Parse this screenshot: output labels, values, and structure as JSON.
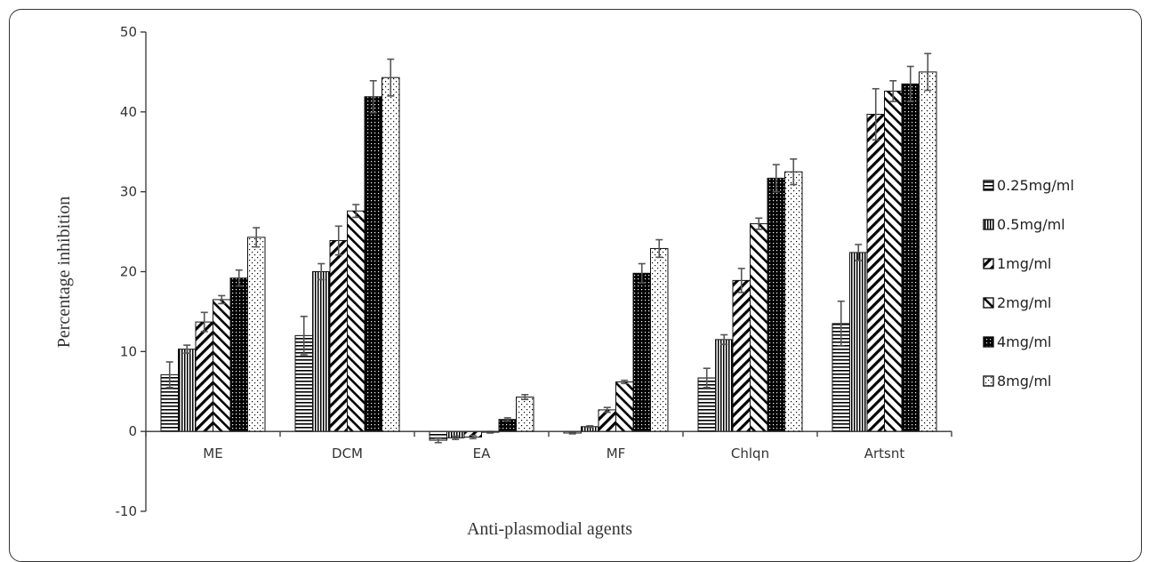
{
  "chart_data": {
    "type": "bar",
    "xlabel": "Anti-plasmodial agents",
    "ylabel": "Percentage inhibition",
    "ylim": [
      -10,
      50
    ],
    "yticks": [
      -10,
      0,
      10,
      20,
      30,
      40,
      50
    ],
    "grid": false,
    "legend_position": "right",
    "categories": [
      "ME",
      "DCM",
      "EA",
      "MF",
      "Chlqn",
      "Artsnt"
    ],
    "series": [
      {
        "name": "0.25mg/ml",
        "pattern": "horizontal-lines",
        "values": [
          7.1,
          12.0,
          -1.1,
          -0.2,
          6.7,
          13.5
        ],
        "errors": [
          1.6,
          2.4,
          0.3,
          0.1,
          1.2,
          2.8
        ]
      },
      {
        "name": "0.5mg/ml",
        "pattern": "vertical-lines",
        "values": [
          10.3,
          20.0,
          -0.8,
          0.6,
          11.5,
          22.4
        ],
        "errors": [
          0.5,
          1.0,
          0.2,
          0.1,
          0.6,
          1.0
        ]
      },
      {
        "name": "1mg/ml",
        "pattern": "diagonal-up",
        "values": [
          13.7,
          23.9,
          -0.7,
          2.7,
          18.9,
          39.7
        ],
        "errors": [
          1.2,
          1.8,
          0.2,
          0.3,
          1.5,
          3.2
        ]
      },
      {
        "name": "2mg/ml",
        "pattern": "diagonal-down",
        "values": [
          16.5,
          27.6,
          -0.1,
          6.2,
          26.0,
          42.6
        ],
        "errors": [
          0.5,
          0.8,
          0.1,
          0.2,
          0.7,
          1.3
        ]
      },
      {
        "name": "4mg/ml",
        "pattern": "dense-dots",
        "values": [
          19.2,
          41.9,
          1.5,
          19.8,
          31.7,
          43.5
        ],
        "errors": [
          1.0,
          2.0,
          0.2,
          1.2,
          1.7,
          2.2
        ]
      },
      {
        "name": "8mg/ml",
        "pattern": "sparse-dots",
        "values": [
          24.3,
          44.3,
          4.3,
          22.9,
          32.5,
          45.0
        ],
        "errors": [
          1.2,
          2.3,
          0.3,
          1.1,
          1.6,
          2.3
        ]
      }
    ],
    "colors": {
      "axis": "#333333",
      "bar_stroke": "#111111",
      "error_bar": "#555555",
      "fill": "#000000"
    }
  }
}
